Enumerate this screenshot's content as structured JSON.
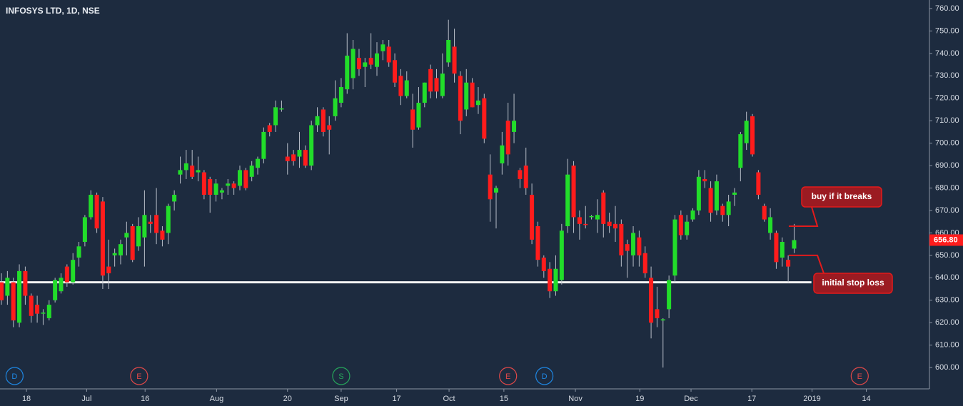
{
  "chart_data": {
    "type": "candlestick",
    "title": "INFOSYS LTD, 1D, NSE",
    "up_color": "#22dd2a",
    "down_color": "#ff1c1c",
    "xlim": [
      -0.24,
      155.7
    ],
    "ylim": [
      590.5,
      763.8
    ],
    "yticks": [
      {
        "value": 600,
        "label": "600.00"
      },
      {
        "value": 610,
        "label": "610.00"
      },
      {
        "value": 620,
        "label": "620.00"
      },
      {
        "value": 630,
        "label": "630.00"
      },
      {
        "value": 640,
        "label": "640.00"
      },
      {
        "value": 650,
        "label": "650.00"
      },
      {
        "value": 660,
        "label": "660.00"
      },
      {
        "value": 670,
        "label": "670.00"
      },
      {
        "value": 680,
        "label": "680.00"
      },
      {
        "value": 690,
        "label": "690.00"
      },
      {
        "value": 700,
        "label": "700.00"
      },
      {
        "value": 710,
        "label": "710.00"
      },
      {
        "value": 720,
        "label": "720.00"
      },
      {
        "value": 730,
        "label": "730.00"
      },
      {
        "value": 740,
        "label": "740.00"
      },
      {
        "value": 750,
        "label": "750.00"
      },
      {
        "value": 760,
        "label": "760.00"
      }
    ],
    "xticks": [
      {
        "value": 4.2,
        "label": "18"
      },
      {
        "value": 14.3,
        "label": "Jul"
      },
      {
        "value": 24.1,
        "label": "16"
      },
      {
        "value": 36.1,
        "label": "Aug"
      },
      {
        "value": 48.0,
        "label": "20"
      },
      {
        "value": 57.0,
        "label": "Sep"
      },
      {
        "value": 66.3,
        "label": "17"
      },
      {
        "value": 75.1,
        "label": "Oct"
      },
      {
        "value": 84.3,
        "label": "15"
      },
      {
        "value": 96.3,
        "label": "Nov"
      },
      {
        "value": 107.1,
        "label": "19"
      },
      {
        "value": 115.7,
        "label": "Dec"
      },
      {
        "value": 125.9,
        "label": "17"
      },
      {
        "value": 136.0,
        "label": "2019"
      },
      {
        "value": 145.1,
        "label": "14"
      }
    ],
    "ohlc": [
      [
        638,
        642,
        628,
        630
      ],
      [
        632,
        643,
        628,
        640
      ],
      [
        638,
        640,
        618,
        621
      ],
      [
        620,
        646,
        618,
        643
      ],
      [
        643,
        645,
        628,
        632
      ],
      [
        632,
        633,
        620,
        623
      ],
      [
        628,
        632,
        620,
        624
      ],
      [
        624,
        626,
        619,
        624.5
      ],
      [
        622,
        630,
        621,
        628
      ],
      [
        630,
        640,
        629,
        639
      ],
      [
        634,
        642,
        633,
        640
      ],
      [
        645,
        646,
        636,
        638
      ],
      [
        638,
        651,
        637,
        648
      ],
      [
        649,
        656,
        645,
        654
      ],
      [
        656,
        668,
        654,
        667
      ],
      [
        667,
        679,
        666,
        677
      ],
      [
        677,
        678,
        660,
        662
      ],
      [
        674,
        676,
        635,
        641
      ],
      [
        645,
        657,
        635,
        642
      ],
      [
        650,
        653,
        645,
        651
      ],
      [
        650,
        657,
        646,
        655
      ],
      [
        658,
        665,
        650,
        660
      ],
      [
        663,
        664,
        647,
        648
      ],
      [
        654,
        667,
        652,
        663
      ],
      [
        658,
        679,
        645,
        668
      ],
      [
        665,
        668,
        660,
        664
      ],
      [
        668,
        680,
        655,
        660
      ],
      [
        661,
        663,
        654,
        657
      ],
      [
        660,
        673,
        655,
        672
      ],
      [
        674,
        679,
        670,
        677
      ],
      [
        686,
        694,
        682,
        688
      ],
      [
        688,
        697,
        684,
        691
      ],
      [
        690,
        697,
        684,
        685
      ],
      [
        687,
        694,
        683,
        688
      ],
      [
        687,
        688,
        675,
        677
      ],
      [
        684,
        685,
        669,
        677
      ],
      [
        677,
        684,
        674,
        682
      ],
      [
        678,
        680,
        675,
        679
      ],
      [
        681,
        684,
        677,
        682
      ],
      [
        682,
        683,
        677,
        680
      ],
      [
        681,
        690,
        679,
        688
      ],
      [
        688,
        689,
        679,
        680
      ],
      [
        685,
        692,
        683,
        690
      ],
      [
        689,
        694,
        686,
        693
      ],
      [
        693,
        707,
        691,
        705
      ],
      [
        708,
        709,
        703,
        705
      ],
      [
        708,
        719,
        705,
        716
      ],
      [
        715,
        719,
        714,
        715.5
      ],
      [
        694,
        700,
        686,
        692
      ],
      [
        695,
        697,
        690,
        692
      ],
      [
        694,
        705,
        689,
        697
      ],
      [
        697,
        699,
        689,
        690
      ],
      [
        690,
        710,
        688,
        708
      ],
      [
        708,
        716,
        705,
        712
      ],
      [
        715,
        716,
        703,
        705
      ],
      [
        708,
        712,
        695,
        706
      ],
      [
        712,
        728,
        710,
        720
      ],
      [
        718,
        729,
        716,
        725
      ],
      [
        724,
        749,
        722,
        739
      ],
      [
        729,
        746,
        724,
        742
      ],
      [
        738,
        742,
        730,
        733
      ],
      [
        734,
        738,
        725,
        736
      ],
      [
        738,
        749,
        733,
        735
      ],
      [
        734,
        745,
        730,
        740
      ],
      [
        741,
        746,
        737,
        744
      ],
      [
        743,
        746,
        734,
        736
      ],
      [
        737,
        740,
        725,
        727
      ],
      [
        730,
        733,
        717,
        721
      ],
      [
        721,
        732,
        720,
        728
      ],
      [
        715,
        722,
        698,
        706
      ],
      [
        707,
        725,
        706,
        718
      ],
      [
        718,
        727,
        716,
        727
      ],
      [
        733,
        735,
        720,
        723
      ],
      [
        729,
        733,
        720,
        723
      ],
      [
        721,
        740,
        720,
        731
      ],
      [
        736,
        755,
        734,
        746
      ],
      [
        743,
        751,
        727,
        731
      ],
      [
        730,
        732,
        704,
        710
      ],
      [
        715,
        733,
        712,
        727
      ],
      [
        727,
        729,
        716,
        716
      ],
      [
        717,
        725,
        713,
        719
      ],
      [
        720,
        722,
        700,
        702
      ],
      [
        686,
        695,
        665,
        675
      ],
      [
        678,
        681,
        662,
        680
      ],
      [
        691,
        705,
        686,
        699
      ],
      [
        710,
        718,
        690,
        695
      ],
      [
        705,
        722,
        700,
        710
      ],
      [
        688,
        689,
        680,
        684
      ],
      [
        690,
        698,
        677,
        680
      ],
      [
        677,
        682,
        655,
        657
      ],
      [
        663,
        665,
        645,
        648
      ],
      [
        649,
        650,
        640,
        643
      ],
      [
        644,
        647,
        631,
        634
      ],
      [
        634,
        650,
        632,
        644
      ],
      [
        639,
        664,
        637,
        661
      ],
      [
        663,
        693,
        660,
        686
      ],
      [
        690,
        692,
        660,
        667
      ],
      [
        667,
        670,
        657,
        664
      ],
      [
        664,
        672,
        662,
        663.5
      ],
      [
        667,
        668,
        666,
        667.5
      ],
      [
        666,
        675,
        660,
        668
      ],
      [
        678,
        679,
        658,
        664
      ],
      [
        665,
        669,
        660,
        663
      ],
      [
        664,
        672,
        656,
        662
      ],
      [
        664,
        666,
        645,
        650
      ],
      [
        655,
        657,
        640,
        652
      ],
      [
        650,
        663,
        645,
        660
      ],
      [
        658,
        661,
        645,
        650
      ],
      [
        651,
        654,
        640,
        642
      ],
      [
        640,
        645,
        613,
        620
      ],
      [
        626,
        636,
        618,
        622
      ],
      [
        621,
        622,
        600,
        621.5
      ],
      [
        626,
        641,
        622,
        639
      ],
      [
        641,
        668,
        638,
        666
      ],
      [
        668,
        670,
        657,
        659
      ],
      [
        659,
        668,
        657,
        665
      ],
      [
        666,
        671,
        665,
        670
      ],
      [
        670,
        688,
        668,
        685
      ],
      [
        684,
        688,
        680,
        683
      ],
      [
        680,
        683,
        665,
        669
      ],
      [
        670,
        686,
        668,
        683
      ],
      [
        672,
        673,
        665,
        668
      ],
      [
        668,
        677,
        663,
        674
      ],
      [
        677,
        680,
        672,
        678
      ],
      [
        689,
        705,
        683,
        704
      ],
      [
        700,
        714,
        697,
        710
      ],
      [
        712,
        713,
        694,
        695
      ],
      [
        687,
        688,
        675,
        677
      ],
      [
        672,
        673,
        665,
        666
      ],
      [
        660,
        671,
        657,
        667
      ],
      [
        660,
        661,
        644,
        647
      ],
      [
        649,
        658,
        645,
        656
      ],
      [
        648,
        650,
        638,
        645
      ],
      [
        653,
        664,
        651,
        656.8
      ]
    ],
    "last_price": {
      "value": 656.8,
      "label": "656.80"
    },
    "support_level": 638,
    "annotations": [
      {
        "text": "buy if it breaks",
        "level": 663
      },
      {
        "text": "initial stop loss",
        "level": 650
      }
    ],
    "events": [
      {
        "label": "D",
        "x": 2.2,
        "color": "#1e88e5"
      },
      {
        "label": "E",
        "x": 23.1,
        "color": "#e04848"
      },
      {
        "label": "S",
        "x": 57.0,
        "color": "#26a65b"
      },
      {
        "label": "E",
        "x": 85.0,
        "color": "#e04848"
      },
      {
        "label": "D",
        "x": 91.1,
        "color": "#1e88e5"
      },
      {
        "label": "E",
        "x": 144.0,
        "color": "#e04848"
      }
    ]
  }
}
